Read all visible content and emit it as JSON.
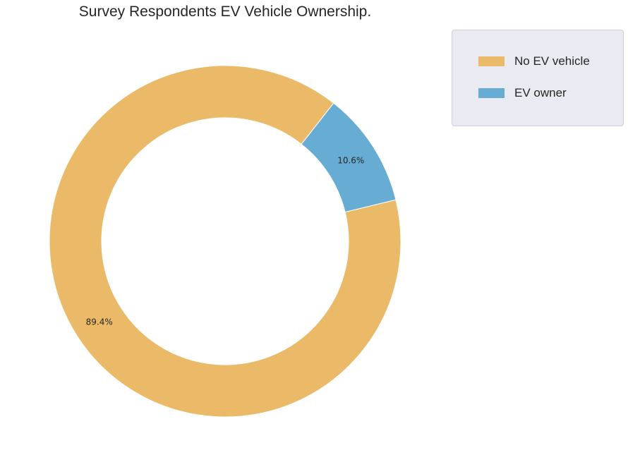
{
  "chart_data": {
    "type": "pie",
    "style": "donut",
    "title": "Survey Respondents EV Vehicle Ownership.",
    "legend_position": "top-right",
    "slices": [
      {
        "label": "No EV vehicle",
        "value": 89.4,
        "display": "89.4%",
        "color": "#eaba69"
      },
      {
        "label": "EV owner",
        "value": 10.6,
        "display": "10.6%",
        "color": "#67acd2"
      }
    ]
  }
}
